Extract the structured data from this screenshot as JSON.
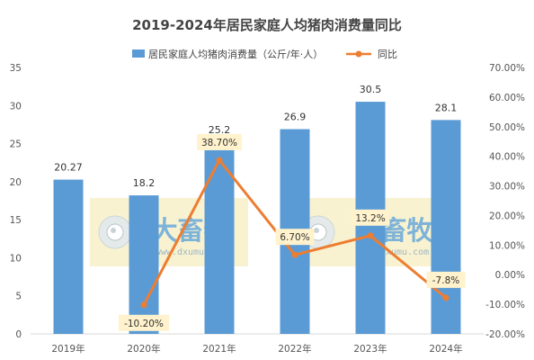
{
  "chart_data": {
    "type": "bar",
    "title": "2019-2024年居民家庭人均猪肉消费量同比",
    "categories": [
      "2019年",
      "2020年",
      "2021年",
      "2022年",
      "2023年",
      "2024年"
    ],
    "series": [
      {
        "name": "居民家庭人均猪肉消费量（公斤/年·人）",
        "type": "bar",
        "axis": "left",
        "values": [
          20.27,
          18.2,
          25.2,
          26.9,
          30.5,
          28.1
        ],
        "labels": [
          "20.27",
          "18.2",
          "25.2",
          "26.9",
          "30.5",
          "28.1"
        ],
        "color": "#5B9BD5"
      },
      {
        "name": "同比",
        "type": "line",
        "axis": "right",
        "values": [
          null,
          -10.2,
          38.7,
          6.7,
          13.2,
          -7.8
        ],
        "labels": [
          "",
          "-10.20%",
          "38.70%",
          "6.70%",
          "13.2%",
          "-7.8%"
        ],
        "color": "#ED7D31"
      }
    ],
    "y_left": {
      "range": [
        0,
        35
      ],
      "ticks": [
        "0",
        "5",
        "10",
        "15",
        "20",
        "25",
        "30",
        "35"
      ]
    },
    "y_right": {
      "range": [
        -20,
        70
      ],
      "ticks": [
        "-20.00%",
        "-10.00%",
        "0.00%",
        "10.00%",
        "20.00%",
        "30.00%",
        "40.00%",
        "50.00%",
        "60.00%",
        "70.00%"
      ]
    },
    "grid": false,
    "legend_position": "top",
    "label_box_color": "#FFF2CC"
  },
  "watermark": {
    "text": "大畜牧",
    "url": "www.dxumu.com",
    "logo_icon": "eye-icon",
    "box_color": "#F5EEC0",
    "text_color": "#7DB3D8"
  }
}
